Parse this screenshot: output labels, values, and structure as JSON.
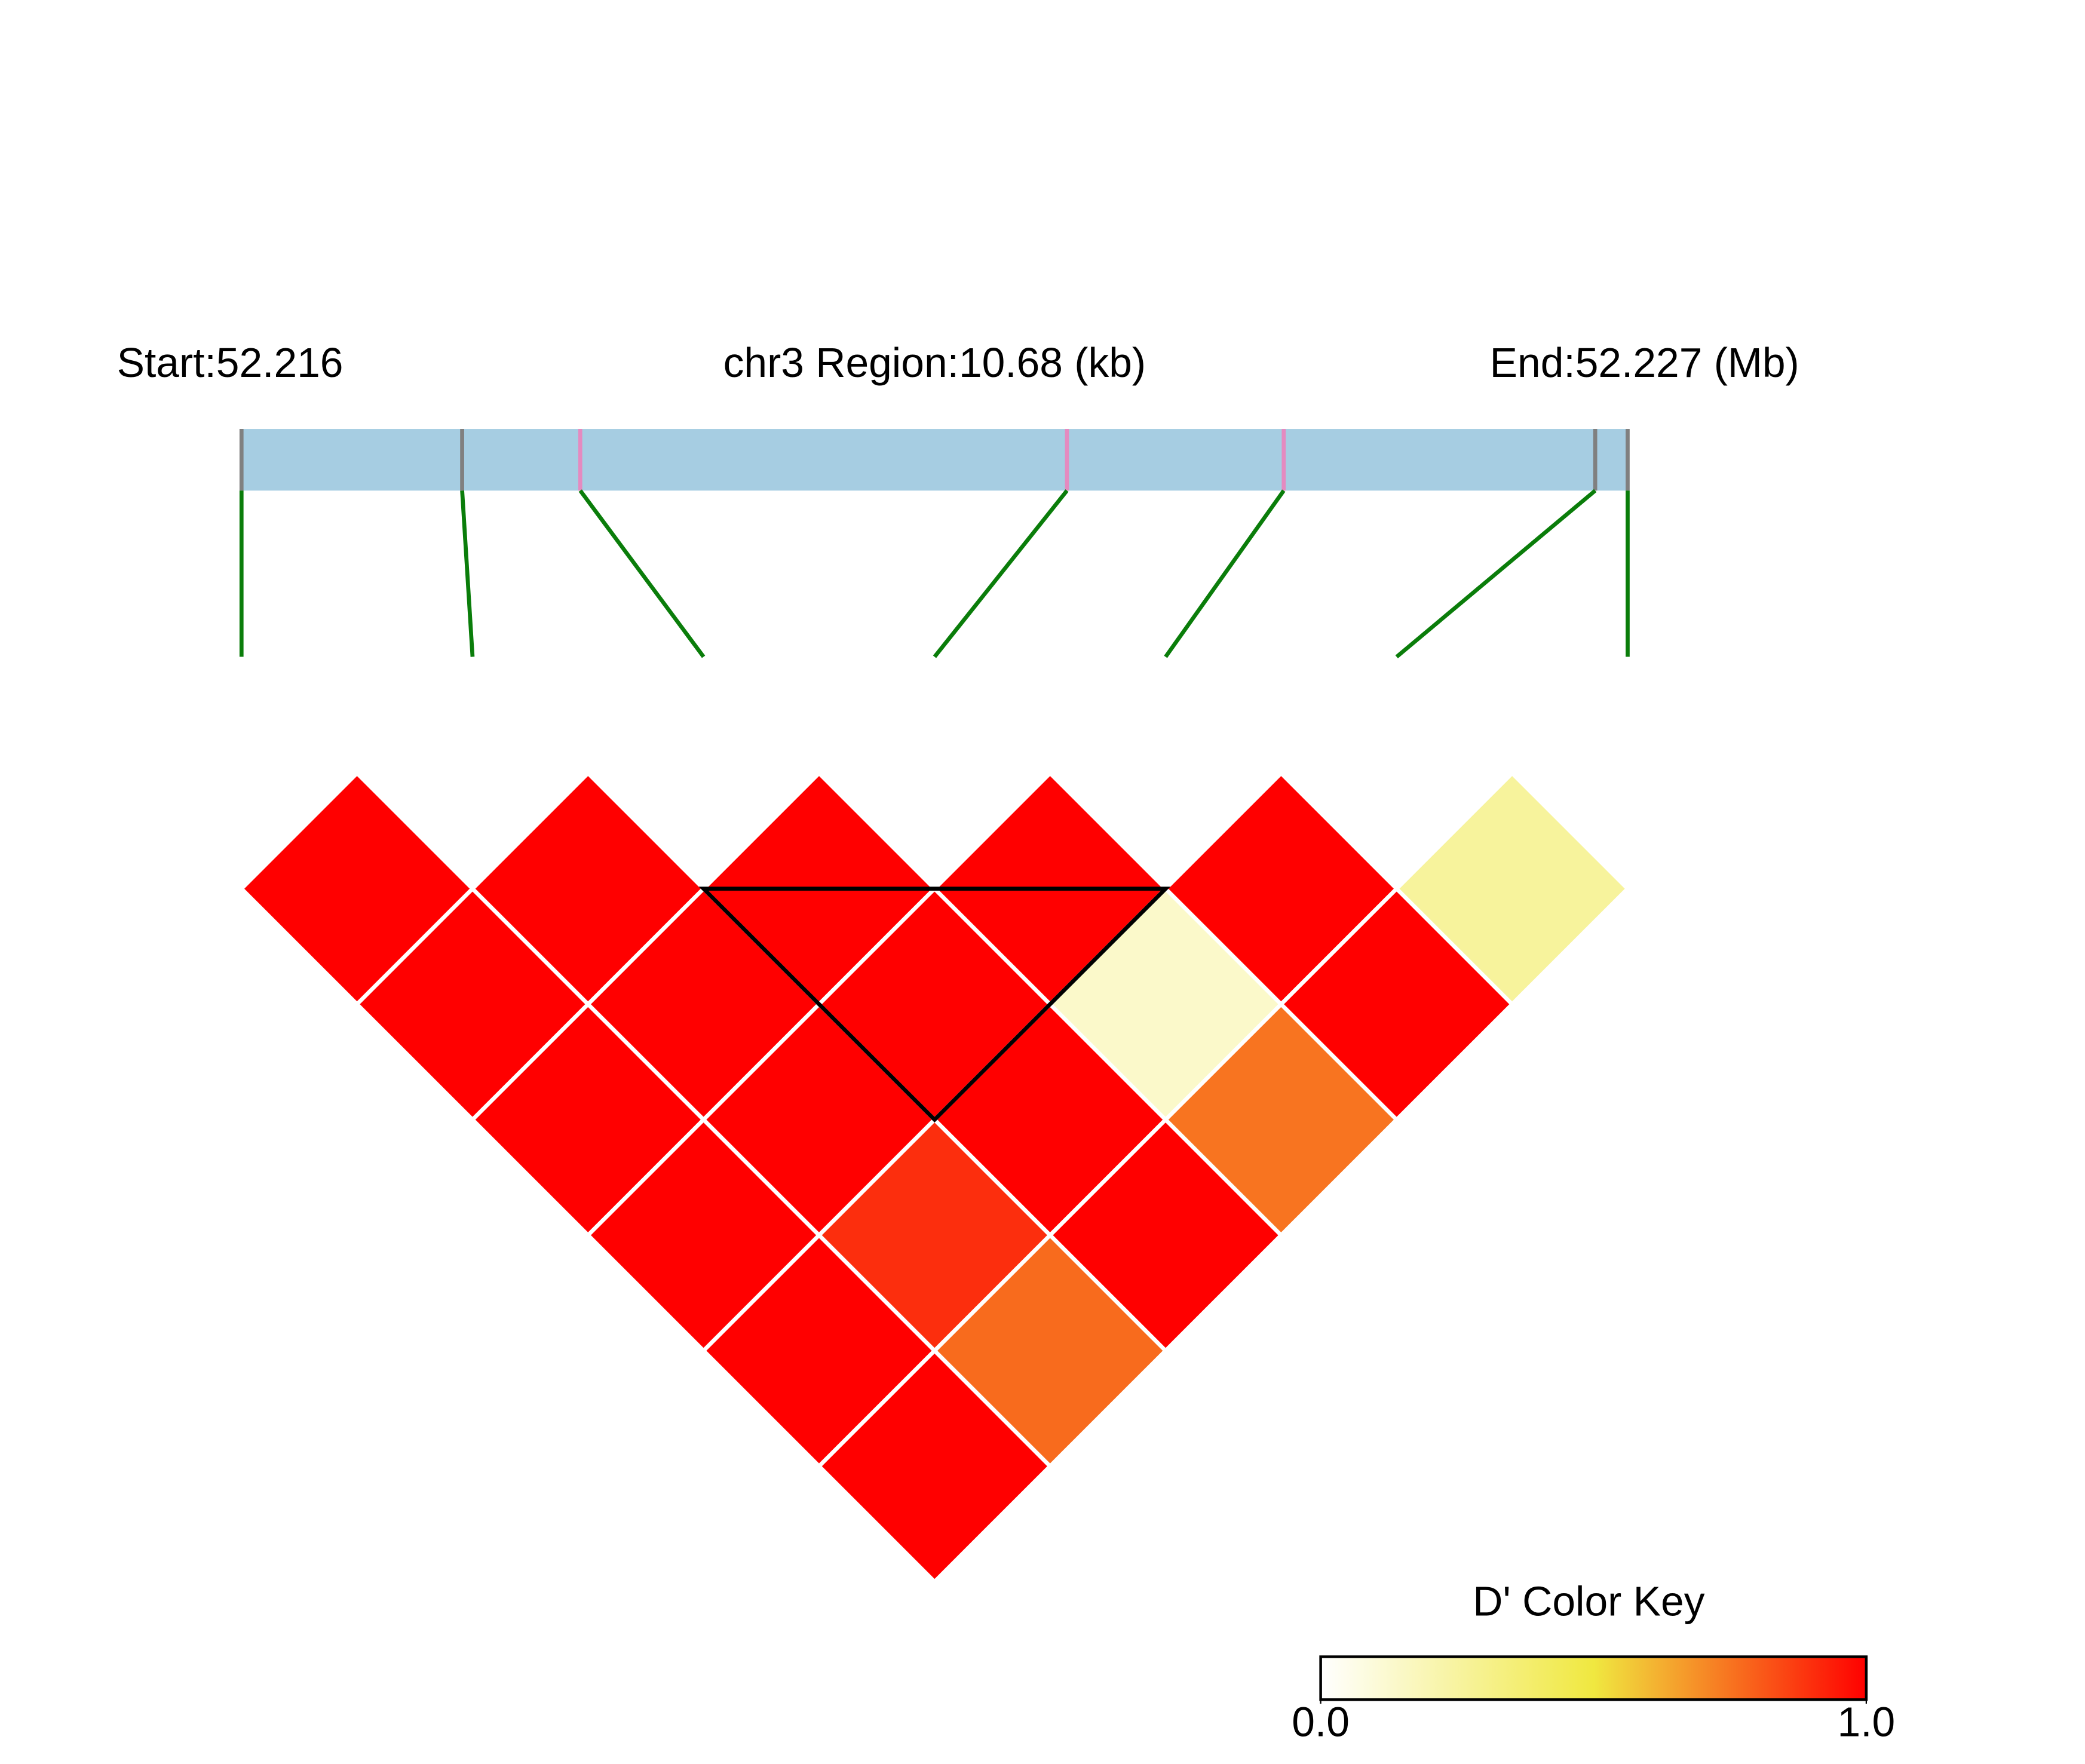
{
  "chart_data": {
    "type": "ld-heatmap",
    "start_label": "Start:52.216",
    "region_label": "chr3 Region:10.68 (kb)",
    "end_label": "End:52.227 (Mb)",
    "region_kb": [
      0,
      10.68
    ],
    "snp_positions_kb": [
      0,
      1.7,
      2.61,
      6.36,
      8.03,
      10.43,
      10.68
    ],
    "snp_colors": [
      "#808080",
      "#808080",
      "#e58ac0",
      "#e58ac0",
      "#e58ac0",
      "#808080",
      "#808080"
    ],
    "bar_color": "#a6cde2",
    "connector_color": "#0a7d0a",
    "values": [
      [
        1,
        1,
        1,
        1,
        1,
        1
      ],
      [
        1,
        1,
        1,
        0.9,
        0.77
      ],
      [
        1,
        1,
        1,
        1
      ],
      [
        1,
        0.14,
        0.75
      ],
      [
        1,
        1
      ],
      [
        0.26
      ]
    ],
    "blocks": [
      [
        2,
        4
      ]
    ],
    "color_key": {
      "title": "D' Color Key",
      "colors": [
        "#ffffff",
        "#f0e840",
        "#ff0000"
      ],
      "lim": [
        0,
        1
      ],
      "ticks": [
        {
          "value": 0,
          "label": "0.0"
        },
        {
          "value": 1,
          "label": "1.0"
        }
      ]
    }
  }
}
